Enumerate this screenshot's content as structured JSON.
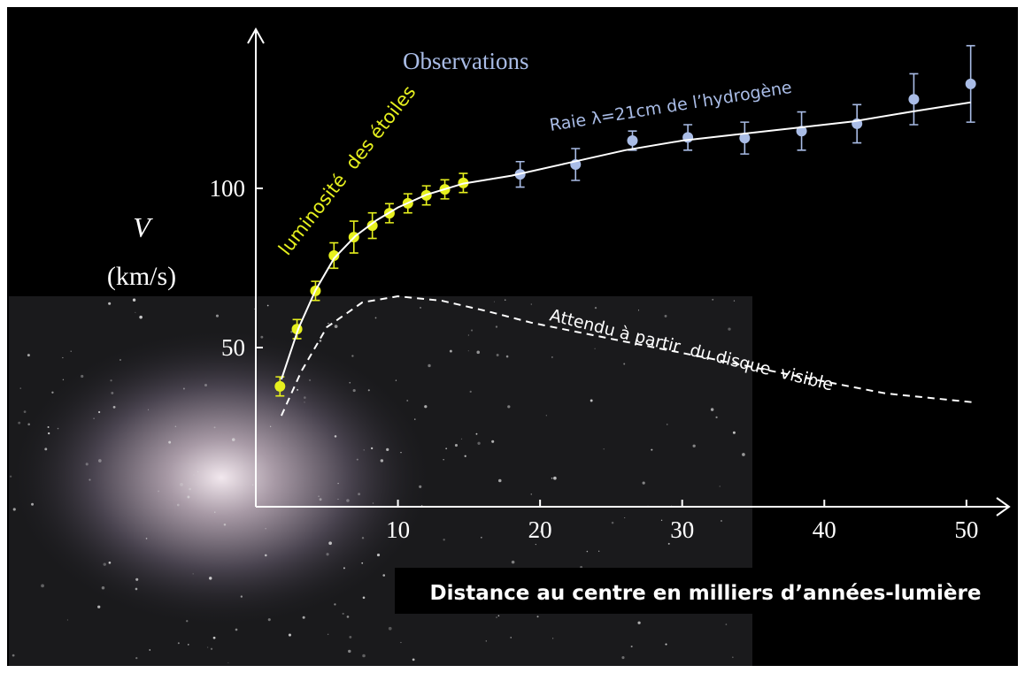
{
  "chart_data": {
    "type": "scatter",
    "title": "Observations",
    "xlabel": "Distance au centre en milliers d’années-lumière",
    "ylabel": "V",
    "yunit": "(km/s)",
    "xlim": [
      0,
      53
    ],
    "ylim": [
      0,
      150
    ],
    "xticks": [
      10,
      20,
      30,
      40,
      50
    ],
    "yticks": [
      50,
      100
    ],
    "grid": false,
    "series": [
      {
        "name": "luminosité  des étoiles",
        "color": "#e6f01e",
        "style": "points",
        "x": [
          1.7,
          2.9,
          4.2,
          5.5,
          6.9,
          8.2,
          9.4,
          10.7,
          12.0,
          13.3,
          14.6
        ],
        "values": [
          37.8,
          55.8,
          67.8,
          78.9,
          84.7,
          88.3,
          92.2,
          95.3,
          97.8,
          99.7,
          101.7
        ],
        "errors": [
          3,
          3,
          3,
          4,
          5,
          4,
          3,
          3,
          3,
          3,
          3
        ]
      },
      {
        "name": "Raie λ=21cm de l’hydrogène",
        "color": "#a9bce6",
        "style": "points",
        "x": [
          18.6,
          22.5,
          26.5,
          30.4,
          34.4,
          38.4,
          42.3,
          46.3,
          50.3
        ],
        "values": [
          104.4,
          107.5,
          115,
          116,
          115.8,
          118,
          120.3,
          128,
          132.8
        ],
        "errors": [
          4,
          5,
          3,
          4,
          5,
          6,
          6,
          8,
          12
        ]
      },
      {
        "color": "#ffffff",
        "style": "solid",
        "x": [
          1.8,
          3,
          4.2,
          5.5,
          7,
          8.5,
          10,
          12,
          14.6,
          18,
          22,
          26,
          30,
          34,
          38,
          42,
          46,
          50.3
        ],
        "values": [
          40,
          56,
          68,
          78,
          85,
          90,
          94,
          98,
          101.5,
          104,
          108,
          112,
          115,
          117,
          119,
          121,
          124,
          127
        ]
      },
      {
        "name": "Attendu à partir  du disque  visible",
        "color": "#ffffff",
        "style": "dashed",
        "x": [
          1.8,
          3.2,
          5.0,
          7.5,
          10,
          13.1,
          16.3,
          19.4,
          25.6,
          31.8,
          38.0,
          44.3,
          50.5
        ],
        "values": [
          28.6,
          42.5,
          56.4,
          64.2,
          66.1,
          64.7,
          61.4,
          57.8,
          52.2,
          46.7,
          41.1,
          35.6,
          32.8
        ]
      }
    ]
  }
}
